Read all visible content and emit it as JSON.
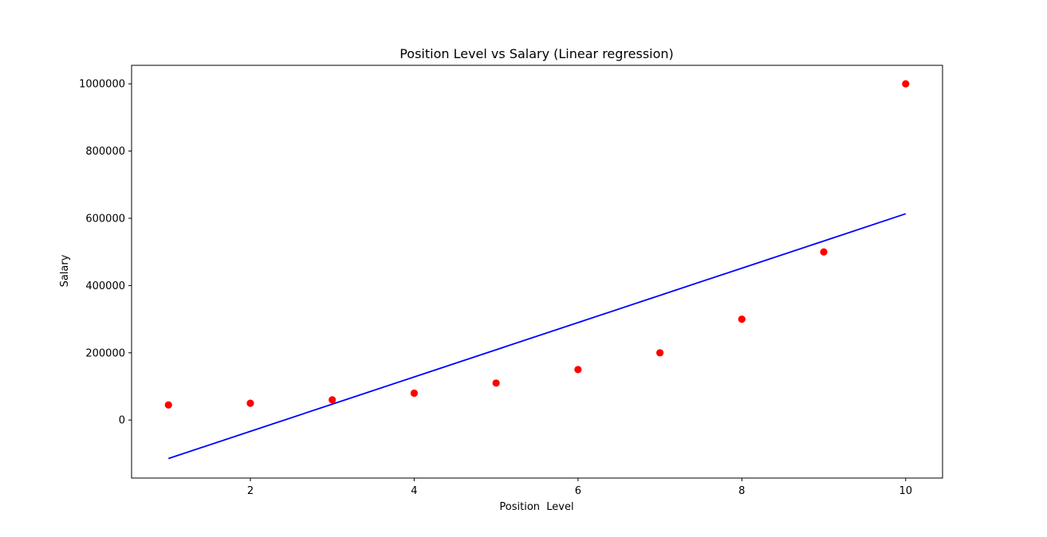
{
  "chart_data": {
    "type": "scatter",
    "title": "Position Level vs Salary (Linear regression)",
    "xlabel": "Position  Level",
    "ylabel": "Salary",
    "xlim": [
      0.55,
      10.45
    ],
    "ylim": [
      -172500,
      1055000
    ],
    "xticks": [
      2,
      4,
      6,
      8,
      10
    ],
    "xtick_labels": [
      "2",
      "4",
      "6",
      "8",
      "10"
    ],
    "yticks": [
      0,
      200000,
      400000,
      600000,
      800000,
      1000000
    ],
    "ytick_labels": [
      "0",
      "200000",
      "400000",
      "600000",
      "800000",
      "1000000"
    ],
    "grid": false,
    "series": [
      {
        "kind": "scatter",
        "color": "#ff0000",
        "x": [
          1,
          2,
          3,
          4,
          5,
          6,
          7,
          8,
          9,
          10
        ],
        "y": [
          45000,
          50000,
          60000,
          80000,
          110000,
          150000,
          200000,
          300000,
          500000,
          1000000
        ]
      },
      {
        "kind": "line",
        "color": "#0000ff",
        "x": [
          1,
          2,
          3,
          4,
          5,
          6,
          7,
          8,
          9,
          10
        ],
        "y": [
          -114454.55,
          -33575.76,
          47303.03,
          128181.82,
          209060.61,
          289939.39,
          370818.18,
          451696.97,
          532575.76,
          613454.55
        ]
      }
    ]
  }
}
